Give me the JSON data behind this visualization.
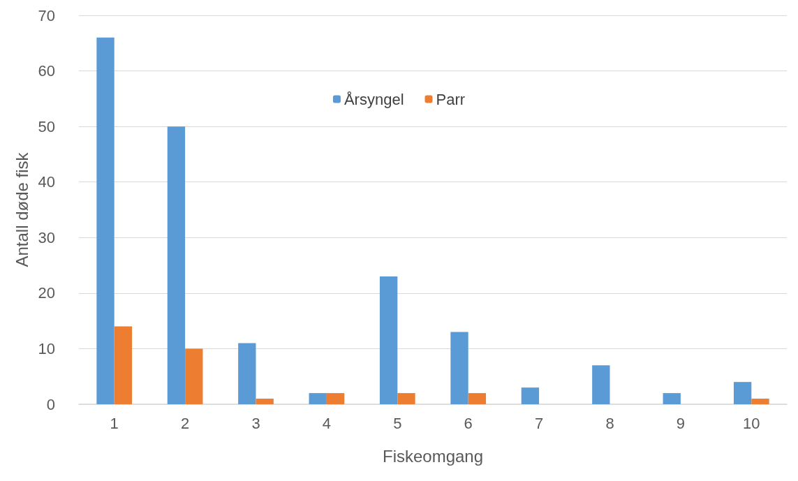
{
  "chart_data": {
    "type": "bar",
    "xlabel": "Fiskeomgang",
    "ylabel": "Antall døde fisk",
    "categories": [
      "1",
      "2",
      "3",
      "4",
      "5",
      "6",
      "7",
      "8",
      "9",
      "10"
    ],
    "series": [
      {
        "name": "Årsyngel",
        "color": "#5b9bd5",
        "values": [
          66,
          50,
          11,
          2,
          23,
          13,
          3,
          7,
          2,
          4
        ]
      },
      {
        "name": "Parr",
        "color": "#ed7d31",
        "values": [
          14,
          10,
          1,
          2,
          2,
          2,
          0,
          0,
          0,
          1
        ]
      }
    ],
    "ylim": [
      0,
      70
    ],
    "yticks": [
      0,
      10,
      20,
      30,
      40,
      50,
      60,
      70
    ],
    "grid": "y",
    "legend": "top"
  }
}
